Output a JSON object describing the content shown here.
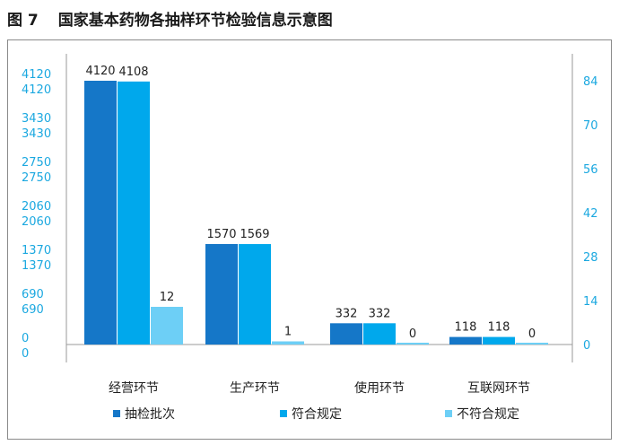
{
  "figure": {
    "number": "图 7",
    "title": "国家基本药物各抽样环节检验信息示意图"
  },
  "chart_data": {
    "type": "bar",
    "title": "国家基本药物各抽样环节检验信息示意图",
    "categories": [
      "经营环节",
      "生产环节",
      "使用环节",
      "互联网环节"
    ],
    "series": [
      {
        "name": "抽检批次",
        "values": [
          4120,
          1570,
          332,
          118
        ],
        "labels": [
          "4120",
          "1570",
          "332",
          "118"
        ],
        "color": "#1577c8"
      },
      {
        "name": "符合规定",
        "values": [
          4108,
          1569,
          332,
          118
        ],
        "labels": [
          "4108",
          "1569",
          "332",
          "118"
        ],
        "color": "#00a8ec"
      },
      {
        "name": "不符合规定",
        "values": [
          12,
          1,
          0,
          0
        ],
        "labels": [
          "12",
          "1",
          "0",
          "0"
        ],
        "color": "#6dcff6",
        "axis": "right"
      }
    ],
    "left_axis": {
      "range": [
        0,
        4120
      ],
      "ticks": [
        0,
        690,
        1370,
        2060,
        2750,
        3430,
        4120
      ],
      "tick_labels": [
        "0",
        "690",
        "1370",
        "2060",
        "2750",
        "3430",
        "4120"
      ],
      "duplicated_labels": true
    },
    "right_axis": {
      "range": [
        0,
        84
      ],
      "ticks": [
        0,
        14,
        28,
        42,
        56,
        70,
        84
      ],
      "tick_labels": [
        "0",
        "14",
        "28",
        "42",
        "56",
        "70",
        "84"
      ]
    },
    "legend_position": "bottom",
    "grid": false
  }
}
